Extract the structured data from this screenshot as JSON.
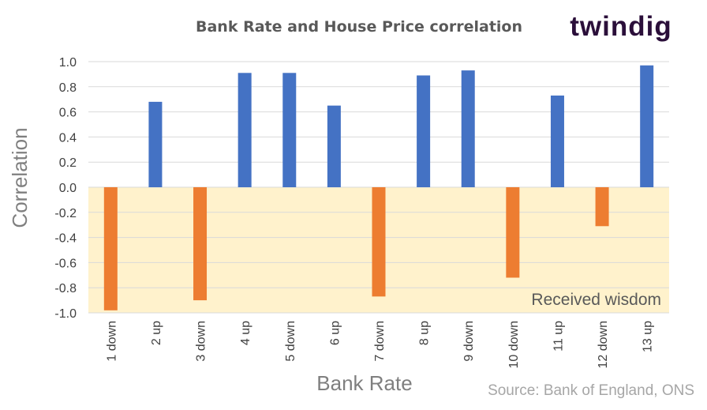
{
  "chart_data": {
    "type": "bar",
    "title": "Bank Rate and House Price correlation",
    "xlabel": "Bank Rate",
    "ylabel": "Correlation",
    "ylim": [
      -1.0,
      1.0
    ],
    "yticks": [
      "1.0",
      "0.8",
      "0.6",
      "0.4",
      "0.2",
      "0.0",
      "-0.2",
      "-0.4",
      "-0.6",
      "-0.8",
      "-1.0"
    ],
    "categories": [
      "1 down",
      "2 up",
      "3 down",
      "4 up",
      "5 down",
      "6 up",
      "7 down",
      "8 up",
      "9 down",
      "10 down",
      "11 up",
      "12 down",
      "13 up"
    ],
    "values": [
      -0.98,
      0.68,
      -0.9,
      0.91,
      0.91,
      0.65,
      -0.87,
      0.89,
      0.93,
      -0.72,
      0.73,
      -0.31,
      0.97
    ],
    "grid": true,
    "colors": {
      "positive": "#4472c4",
      "negative": "#ed7d31",
      "band": "#fff2cc",
      "grid": "#d9d9d9"
    },
    "band_label": "Received wisdom",
    "source": "Source: Bank of England, ONS",
    "logo": "twindig"
  }
}
